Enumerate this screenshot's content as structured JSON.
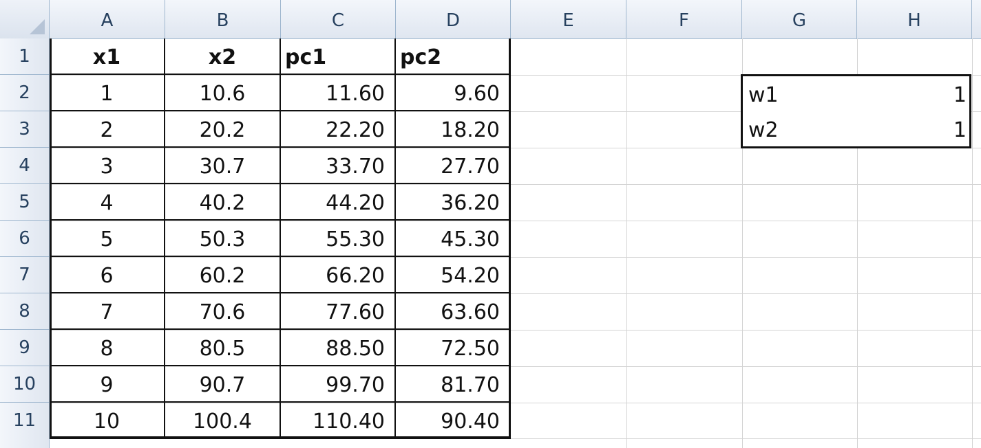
{
  "columns": [
    "A",
    "B",
    "C",
    "D",
    "E",
    "F",
    "G",
    "H"
  ],
  "rows": [
    "1",
    "2",
    "3",
    "4",
    "5",
    "6",
    "7",
    "8",
    "9",
    "10",
    "11"
  ],
  "table": {
    "headers": [
      "x1",
      "x2",
      "pc1",
      "pc2"
    ],
    "data": [
      [
        "1",
        "10.6",
        "11.60",
        "9.60"
      ],
      [
        "2",
        "20.2",
        "22.20",
        "18.20"
      ],
      [
        "3",
        "30.7",
        "33.70",
        "27.70"
      ],
      [
        "4",
        "40.2",
        "44.20",
        "36.20"
      ],
      [
        "5",
        "50.3",
        "55.30",
        "45.30"
      ],
      [
        "6",
        "60.2",
        "66.20",
        "54.20"
      ],
      [
        "7",
        "70.6",
        "77.60",
        "63.60"
      ],
      [
        "8",
        "80.5",
        "88.50",
        "72.50"
      ],
      [
        "9",
        "90.7",
        "99.70",
        "81.70"
      ],
      [
        "10",
        "100.4",
        "110.40",
        "90.40"
      ]
    ]
  },
  "weights": [
    {
      "label": "w1",
      "value": "1"
    },
    {
      "label": "w2",
      "value": "1"
    }
  ],
  "colors": {
    "header_text": "#27415f",
    "header_border": "#9eb6ce",
    "gridline": "#d4d4d4",
    "cell_border": "#111111"
  }
}
